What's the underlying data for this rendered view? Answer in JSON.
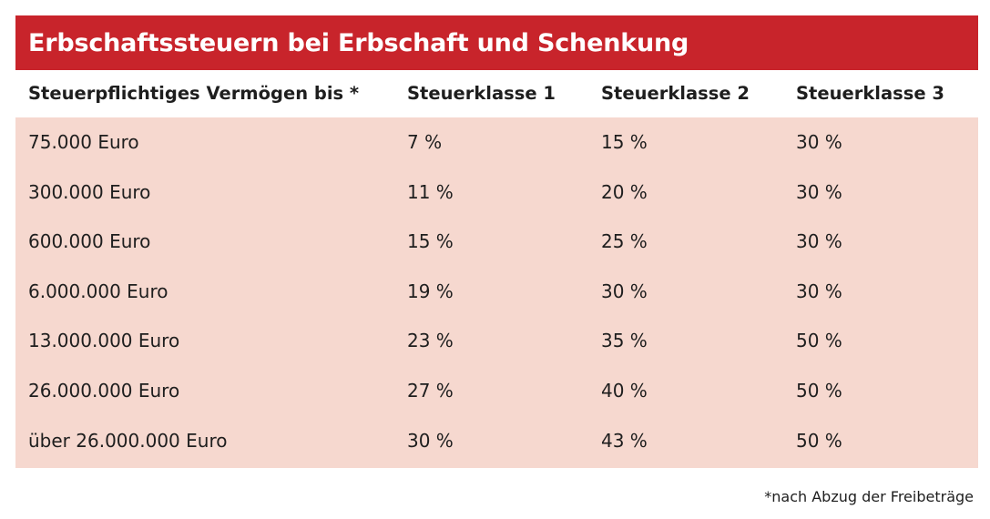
{
  "title": "Erbschaftssteuern bei Erbschaft und Schenkung",
  "headers": [
    "Steuerpflichtiges Vermögen bis *",
    "Steuerklasse 1",
    "Steuerklasse 2",
    "Steuerklasse 3"
  ],
  "rows": [
    [
      "75.000 Euro",
      "7 %",
      "15 %",
      "30 %"
    ],
    [
      "300.000 Euro",
      "11 %",
      "20 %",
      "30 %"
    ],
    [
      "600.000 Euro",
      "15 %",
      "25 %",
      "30 %"
    ],
    [
      "6.000.000 Euro",
      "19 %",
      "30 %",
      "30 %"
    ],
    [
      "13.000.000 Euro",
      "23 %",
      "35 %",
      "50 %"
    ],
    [
      "26.000.000 Euro",
      "27 %",
      "40 %",
      "50 %"
    ],
    [
      "über 26.000.000 Euro",
      "30 %",
      "43 %",
      "50 %"
    ]
  ],
  "footnote": "*nach Abzug der Freibeträge",
  "colors": {
    "title_bg": "#c8242b",
    "body_bg": "#f6d8cf",
    "text": "#1e1e1e"
  }
}
